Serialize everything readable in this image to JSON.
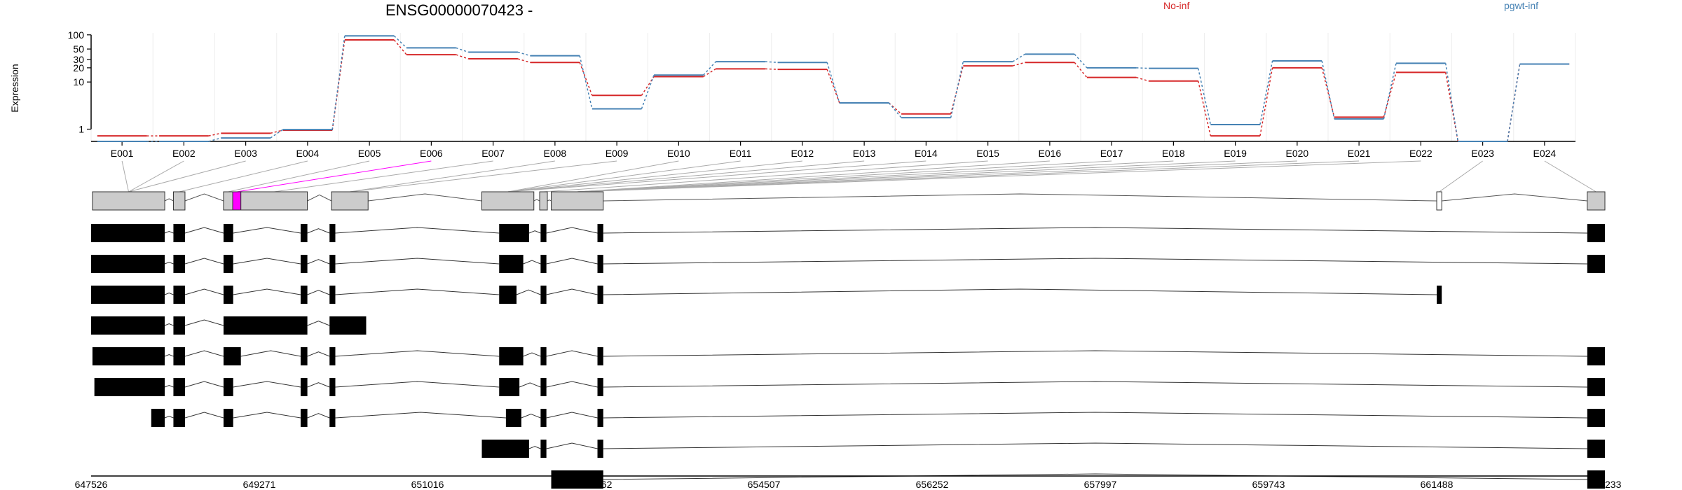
{
  "chart_data": {
    "type": "line",
    "title": "ENSG00000070423 -",
    "ylabel": "Expression",
    "yscale": "log",
    "ylim": [
      0.55,
      110
    ],
    "yticks": [
      1,
      10,
      20,
      30,
      50,
      100
    ],
    "ytick_labels": [
      "1",
      "10",
      "20",
      "30",
      "50",
      "100"
    ],
    "grid": true,
    "categories": [
      "E001",
      "E002",
      "E003",
      "E004",
      "E005",
      "E006",
      "E007",
      "E008",
      "E009",
      "E010",
      "E011",
      "E012",
      "E013",
      "E014",
      "E015",
      "E016",
      "E017",
      "E018",
      "E019",
      "E020",
      "E021",
      "E022",
      "E023",
      "E024"
    ],
    "series": [
      {
        "name": "No-inf",
        "color": "#d62728",
        "values": [
          0.72,
          0.72,
          0.82,
          0.95,
          78,
          38,
          31,
          26,
          5.2,
          13,
          19,
          18.5,
          3.6,
          2.1,
          22,
          26,
          12.5,
          10.5,
          0.72,
          20,
          1.8,
          16,
          0.55,
          24
        ]
      },
      {
        "name": "pgwt-inf",
        "color": "#4682b4",
        "values": [
          0.55,
          0.55,
          0.65,
          0.98,
          95,
          53,
          43,
          36,
          2.7,
          14,
          27,
          26,
          3.6,
          1.75,
          27,
          39,
          20,
          19.5,
          1.25,
          28,
          1.65,
          25,
          0.55,
          24
        ]
      }
    ],
    "genomic_axis": {
      "range": [
        647526,
        663233
      ],
      "tick_labels": [
        "647526",
        "649271",
        "651016",
        "652762",
        "654507",
        "656252",
        "657997",
        "659743",
        "661488",
        "663233"
      ]
    }
  },
  "gene_model": {
    "exons": [
      {
        "start": 647540,
        "end": 648290,
        "id": "E001-E003"
      },
      {
        "start": 648380,
        "end": 648500,
        "id": "E004"
      },
      {
        "start": 648900,
        "end": 648995,
        "id": "E005"
      },
      {
        "start": 648995,
        "end": 649080,
        "id": "E006",
        "highlight": true
      },
      {
        "start": 649080,
        "end": 649770,
        "id": "E007"
      },
      {
        "start": 650020,
        "end": 650400,
        "id": "E008"
      },
      {
        "start": 651580,
        "end": 652120,
        "id": "E009-E013"
      },
      {
        "start": 652180,
        "end": 652260,
        "id": "E014"
      },
      {
        "start": 652300,
        "end": 652840,
        "id": "E015-E016"
      },
      {
        "start": 661488,
        "end": 661540,
        "id": "E023",
        "hollow": true
      },
      {
        "start": 663050,
        "end": 663233,
        "id": "E024"
      }
    ],
    "highlight_color": "#ff00ff"
  },
  "transcripts": [
    {
      "blocks": [
        [
          647526,
          648290
        ],
        [
          648380,
          648500
        ],
        [
          648900,
          649000
        ],
        [
          649700,
          649770
        ],
        [
          650000,
          650060
        ],
        [
          651760,
          652070
        ],
        [
          652190,
          652250
        ],
        [
          652780,
          652840
        ],
        [
          663050,
          663233
        ]
      ]
    },
    {
      "blocks": [
        [
          647526,
          648290
        ],
        [
          648380,
          648500
        ],
        [
          648900,
          649000
        ],
        [
          649700,
          649770
        ],
        [
          650000,
          650060
        ],
        [
          651760,
          652010
        ],
        [
          652190,
          652250
        ],
        [
          652780,
          652840
        ],
        [
          663050,
          663233
        ]
      ]
    },
    {
      "blocks": [
        [
          647526,
          648290
        ],
        [
          648380,
          648500
        ],
        [
          648900,
          649000
        ],
        [
          649700,
          649770
        ],
        [
          650000,
          650060
        ],
        [
          651760,
          651940
        ],
        [
          652190,
          652250
        ],
        [
          652780,
          652840
        ],
        [
          661488,
          661540
        ]
      ]
    },
    {
      "blocks": [
        [
          647526,
          648290
        ],
        [
          648380,
          648500
        ],
        [
          648900,
          649770
        ],
        [
          650000,
          650380
        ]
      ]
    },
    {
      "blocks": [
        [
          647540,
          648290
        ],
        [
          648380,
          648500
        ],
        [
          648900,
          649080
        ],
        [
          649700,
          649770
        ],
        [
          650000,
          650060
        ],
        [
          651760,
          652010
        ],
        [
          652190,
          652250
        ],
        [
          652780,
          652840
        ],
        [
          663050,
          663233
        ]
      ]
    },
    {
      "blocks": [
        [
          647560,
          648290
        ],
        [
          648380,
          648500
        ],
        [
          648900,
          649000
        ],
        [
          649700,
          649770
        ],
        [
          650000,
          650060
        ],
        [
          651760,
          651970
        ],
        [
          652190,
          652250
        ],
        [
          652780,
          652840
        ],
        [
          663050,
          663233
        ]
      ]
    },
    {
      "blocks": [
        [
          648150,
          648290
        ],
        [
          648380,
          648500
        ],
        [
          648900,
          649000
        ],
        [
          649700,
          649770
        ],
        [
          650000,
          650060
        ],
        [
          651830,
          651990
        ],
        [
          652190,
          652250
        ],
        [
          652780,
          652840
        ],
        [
          663050,
          663233
        ]
      ]
    },
    {
      "blocks": [
        [
          651580,
          652070
        ],
        [
          652190,
          652250
        ],
        [
          652780,
          652840
        ],
        [
          663050,
          663233
        ]
      ]
    },
    {
      "blocks": [
        [
          652300,
          652840
        ],
        [
          663050,
          663233
        ]
      ]
    }
  ]
}
